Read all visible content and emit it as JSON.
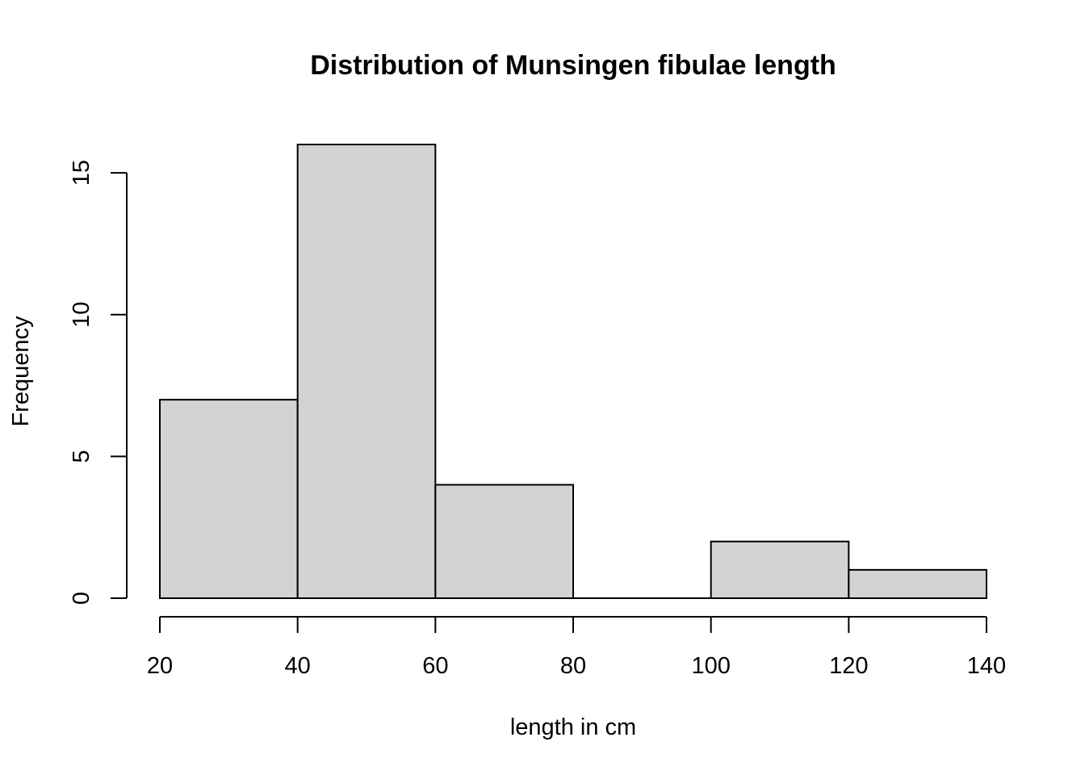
{
  "chart_data": {
    "type": "bar",
    "title": "Distribution of Munsingen fibulae length",
    "xlabel": "length in cm",
    "ylabel": "Frequency",
    "bins": [
      {
        "from": 20,
        "to": 40,
        "count": 7
      },
      {
        "from": 40,
        "to": 60,
        "count": 16
      },
      {
        "from": 60,
        "to": 80,
        "count": 4
      },
      {
        "from": 80,
        "to": 100,
        "count": 0
      },
      {
        "from": 100,
        "to": 120,
        "count": 2
      },
      {
        "from": 120,
        "to": 140,
        "count": 1
      }
    ],
    "xticks": [
      20,
      40,
      60,
      80,
      100,
      120,
      140
    ],
    "yticks": [
      0,
      5,
      10,
      15
    ],
    "xlim": [
      20,
      140
    ],
    "ylim": [
      0,
      16
    ],
    "grid": false,
    "bar_color": "#d3d3d3",
    "edge_color": "#000000"
  }
}
